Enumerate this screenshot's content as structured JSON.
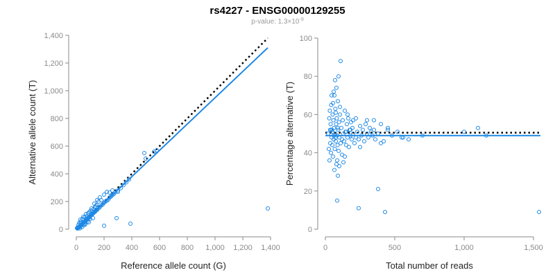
{
  "title": "rs4227 - ENSG00000129255",
  "subtitle": {
    "prefix": "p-value: 1.3×10",
    "exponent": "-9"
  },
  "colors": {
    "points": "#1e88e5",
    "fit": "#1e88e5",
    "reference": "#000000",
    "axis": "#8a8a8a"
  },
  "chart_data": [
    {
      "type": "scatter",
      "xlabel": "Reference allele count (G)",
      "ylabel": "Alternative allele count (T)",
      "xlim": [
        0,
        1400
      ],
      "ylim": [
        0,
        1400
      ],
      "xticks": [
        0,
        200,
        400,
        600,
        800,
        1000,
        1200,
        1400
      ],
      "yticks": [
        0,
        200,
        400,
        600,
        800,
        1000,
        1200,
        1400
      ],
      "xtick_labels": [
        "0",
        "200",
        "400",
        "600",
        "800",
        "1,000",
        "1,200",
        "1,400"
      ],
      "ytick_labels": [
        "0",
        "200",
        "400",
        "600",
        "800",
        "1,000",
        "1,200",
        "1,400"
      ],
      "reference_line": [
        [
          0,
          0
        ],
        [
          1380,
          1380
        ]
      ],
      "fit_line": [
        [
          0,
          0
        ],
        [
          1380,
          1310
        ]
      ],
      "points": [
        [
          5,
          8
        ],
        [
          8,
          5
        ],
        [
          10,
          12
        ],
        [
          12,
          9
        ],
        [
          15,
          11
        ],
        [
          18,
          14
        ],
        [
          20,
          18
        ],
        [
          22,
          15
        ],
        [
          25,
          20
        ],
        [
          28,
          24
        ],
        [
          30,
          22
        ],
        [
          32,
          30
        ],
        [
          35,
          28
        ],
        [
          38,
          34
        ],
        [
          40,
          36
        ],
        [
          42,
          40
        ],
        [
          45,
          38
        ],
        [
          48,
          44
        ],
        [
          50,
          46
        ],
        [
          52,
          48
        ],
        [
          55,
          50
        ],
        [
          58,
          52
        ],
        [
          60,
          56
        ],
        [
          62,
          58
        ],
        [
          65,
          60
        ],
        [
          68,
          64
        ],
        [
          70,
          62
        ],
        [
          72,
          70
        ],
        [
          75,
          68
        ],
        [
          78,
          72
        ],
        [
          80,
          76
        ],
        [
          85,
          80
        ],
        [
          88,
          84
        ],
        [
          90,
          82
        ],
        [
          95,
          90
        ],
        [
          100,
          96
        ],
        [
          105,
          100
        ],
        [
          110,
          104
        ],
        [
          115,
          108
        ],
        [
          120,
          114
        ],
        [
          125,
          118
        ],
        [
          130,
          124
        ],
        [
          135,
          126
        ],
        [
          140,
          134
        ],
        [
          145,
          138
        ],
        [
          150,
          140
        ],
        [
          160,
          152
        ],
        [
          170,
          160
        ],
        [
          180,
          172
        ],
        [
          190,
          178
        ],
        [
          200,
          190
        ],
        [
          210,
          200
        ],
        [
          220,
          206
        ],
        [
          230,
          214
        ],
        [
          240,
          228
        ],
        [
          250,
          236
        ],
        [
          260,
          246
        ],
        [
          270,
          254
        ],
        [
          280,
          266
        ],
        [
          300,
          280
        ],
        [
          320,
          296
        ],
        [
          340,
          318
        ],
        [
          360,
          338
        ],
        [
          30,
          70
        ],
        [
          50,
          90
        ],
        [
          70,
          110
        ],
        [
          60,
          40
        ],
        [
          80,
          55
        ],
        [
          100,
          75
        ],
        [
          110,
          150
        ],
        [
          130,
          185
        ],
        [
          150,
          210
        ],
        [
          170,
          230
        ],
        [
          40,
          15
        ],
        [
          90,
          50
        ],
        [
          20,
          45
        ],
        [
          120,
          80
        ],
        [
          140,
          165
        ],
        [
          160,
          200
        ],
        [
          180,
          210
        ],
        [
          200,
          250
        ],
        [
          220,
          270
        ],
        [
          240,
          265
        ],
        [
          260,
          280
        ],
        [
          30,
          55
        ],
        [
          45,
          75
        ],
        [
          60,
          85
        ],
        [
          75,
          95
        ],
        [
          85,
          115
        ],
        [
          95,
          125
        ],
        [
          65,
          35
        ],
        [
          55,
          28
        ],
        [
          25,
          6
        ],
        [
          15,
          30
        ],
        [
          35,
          48
        ],
        [
          105,
          135
        ],
        [
          115,
          128
        ],
        [
          125,
          145
        ],
        [
          135,
          160
        ],
        [
          145,
          175
        ],
        [
          490,
          550
        ],
        [
          500,
          510
        ],
        [
          560,
          560
        ],
        [
          580,
          570
        ],
        [
          380,
          360
        ],
        [
          300,
          270
        ],
        [
          200,
          25
        ],
        [
          290,
          80
        ],
        [
          390,
          40
        ],
        [
          1380,
          150
        ]
      ]
    },
    {
      "type": "scatter",
      "xlabel": "Total number of reads",
      "ylabel": "Percentage alternative (T)",
      "xlim": [
        0,
        1500
      ],
      "ylim": [
        0,
        100
      ],
      "xticks": [
        0,
        500,
        1000,
        1500
      ],
      "yticks": [
        0,
        20,
        40,
        60,
        80,
        100
      ],
      "xtick_labels": [
        "0",
        "500",
        "1,000",
        "1,500"
      ],
      "ytick_labels": [
        "0",
        "20",
        "40",
        "60",
        "80",
        "100"
      ],
      "reference_line": [
        [
          0,
          50.5
        ],
        [
          1550,
          50.5
        ]
      ],
      "fit_line": [
        [
          0,
          49
        ],
        [
          1550,
          49
        ]
      ],
      "points": [
        [
          20,
          50
        ],
        [
          25,
          42
        ],
        [
          28,
          58
        ],
        [
          30,
          36
        ],
        [
          32,
          62
        ],
        [
          35,
          45
        ],
        [
          38,
          55
        ],
        [
          40,
          40
        ],
        [
          42,
          65
        ],
        [
          45,
          48
        ],
        [
          48,
          52
        ],
        [
          50,
          44
        ],
        [
          52,
          60
        ],
        [
          55,
          38
        ],
        [
          58,
          57
        ],
        [
          60,
          47
        ],
        [
          62,
          53
        ],
        [
          65,
          70
        ],
        [
          68,
          42
        ],
        [
          70,
          50
        ],
        [
          72,
          63
        ],
        [
          75,
          46
        ],
        [
          78,
          55
        ],
        [
          80,
          34
        ],
        [
          82,
          58
        ],
        [
          85,
          49
        ],
        [
          88,
          44
        ],
        [
          90,
          67
        ],
        [
          92,
          52
        ],
        [
          95,
          41
        ],
        [
          98,
          56
        ],
        [
          100,
          48
        ],
        [
          105,
          60
        ],
        [
          110,
          45
        ],
        [
          115,
          53
        ],
        [
          120,
          39
        ],
        [
          125,
          57
        ],
        [
          130,
          50
        ],
        [
          135,
          46
        ],
        [
          140,
          62
        ],
        [
          145,
          51
        ],
        [
          150,
          44
        ],
        [
          155,
          55
        ],
        [
          160,
          48
        ],
        [
          165,
          58
        ],
        [
          170,
          43
        ],
        [
          175,
          52
        ],
        [
          180,
          49
        ],
        [
          185,
          56
        ],
        [
          190,
          47
        ],
        [
          195,
          53
        ],
        [
          200,
          50
        ],
        [
          210,
          45
        ],
        [
          220,
          58
        ],
        [
          230,
          51
        ],
        [
          240,
          47
        ],
        [
          250,
          54
        ],
        [
          260,
          49
        ],
        [
          270,
          52
        ],
        [
          280,
          46
        ],
        [
          290,
          55
        ],
        [
          300,
          50
        ],
        [
          310,
          48
        ],
        [
          320,
          53
        ],
        [
          330,
          51
        ],
        [
          340,
          49
        ],
        [
          350,
          52
        ],
        [
          360,
          47
        ],
        [
          380,
          50
        ],
        [
          400,
          55
        ],
        [
          420,
          46
        ],
        [
          450,
          52
        ],
        [
          480,
          49
        ],
        [
          520,
          51
        ],
        [
          560,
          48
        ],
        [
          600,
          47
        ],
        [
          60,
          72
        ],
        [
          70,
          78
        ],
        [
          80,
          74
        ],
        [
          110,
          88
        ],
        [
          95,
          80
        ],
        [
          45,
          70
        ],
        [
          55,
          66
        ],
        [
          75,
          61
        ],
        [
          85,
          36
        ],
        [
          100,
          33
        ],
        [
          130,
          35
        ],
        [
          65,
          31
        ],
        [
          105,
          64
        ],
        [
          140,
          38
        ],
        [
          160,
          60
        ],
        [
          200,
          57
        ],
        [
          250,
          43
        ],
        [
          300,
          57
        ],
        [
          350,
          57
        ],
        [
          400,
          45
        ],
        [
          450,
          53
        ],
        [
          550,
          48
        ],
        [
          700,
          49
        ],
        [
          1000,
          51
        ],
        [
          1100,
          53
        ],
        [
          90,
          28
        ],
        [
          85,
          15
        ],
        [
          240,
          11
        ],
        [
          380,
          21
        ],
        [
          430,
          9
        ],
        [
          1540,
          9
        ],
        [
          1160,
          49
        ],
        [
          40,
          52
        ],
        [
          50,
          51
        ],
        [
          60,
          49
        ],
        [
          35,
          52
        ],
        [
          75,
          48
        ],
        [
          90,
          53
        ],
        [
          120,
          47
        ],
        [
          150,
          51
        ],
        [
          180,
          52
        ],
        [
          220,
          48
        ]
      ]
    }
  ]
}
